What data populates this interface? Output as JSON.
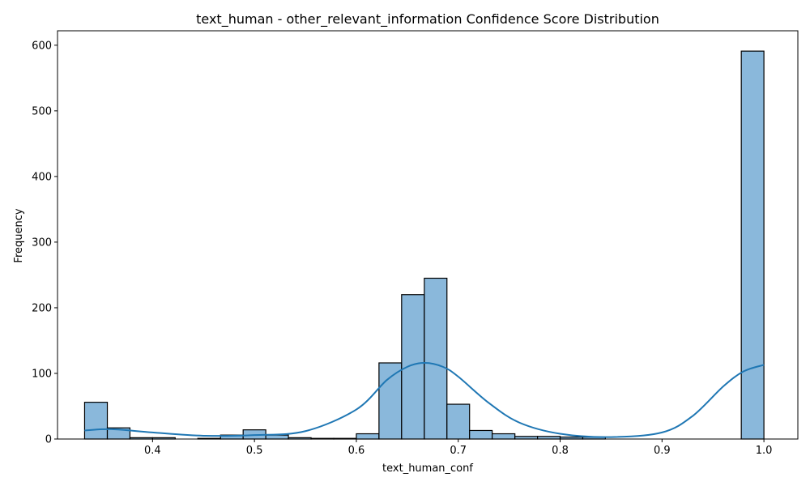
{
  "chart_data": {
    "type": "bar",
    "title": "text_human - other_relevant_information Confidence Score Distribution",
    "xlabel": "text_human_conf",
    "ylabel": "Frequency",
    "xlim": [
      0.3067,
      1.0333
    ],
    "ylim": [
      0,
      622
    ],
    "x_ticks": [
      "0.4",
      "0.5",
      "0.6",
      "0.7",
      "0.8",
      "0.9",
      "1.0"
    ],
    "x_tick_values": [
      0.4,
      0.5,
      0.6,
      0.7,
      0.8,
      0.9,
      1.0
    ],
    "y_ticks": [
      "0",
      "100",
      "200",
      "300",
      "400",
      "500",
      "600"
    ],
    "y_tick_values": [
      0,
      100,
      200,
      300,
      400,
      500,
      600
    ],
    "bin_edges": [
      0.3333,
      0.3556,
      0.3778,
      0.4,
      0.4222,
      0.4444,
      0.4667,
      0.4889,
      0.5111,
      0.5333,
      0.5556,
      0.5778,
      0.6,
      0.6222,
      0.6444,
      0.6667,
      0.6889,
      0.7111,
      0.7333,
      0.7556,
      0.7778,
      0.8,
      0.8222,
      0.8444,
      0.8667,
      0.8889,
      0.9111,
      0.9333,
      0.9556,
      0.9778,
      1.0
    ],
    "counts": [
      56,
      17,
      2,
      2,
      0,
      1,
      6,
      14,
      6,
      2,
      1,
      1,
      8,
      116,
      220,
      245,
      53,
      13,
      8,
      4,
      4,
      3,
      3,
      0,
      0,
      0,
      0,
      0,
      0,
      591
    ],
    "kde": {
      "x": [
        0.3333,
        0.36,
        0.4,
        0.45,
        0.5,
        0.55,
        0.6,
        0.63,
        0.65,
        0.667,
        0.685,
        0.7,
        0.73,
        0.76,
        0.8,
        0.85,
        0.9,
        0.93,
        0.96,
        0.98,
        1.0
      ],
      "y": [
        13,
        15,
        10,
        5,
        6,
        12,
        45,
        90,
        110,
        116,
        110,
        95,
        55,
        25,
        8,
        3,
        10,
        35,
        80,
        103,
        113
      ]
    },
    "grid": false,
    "colors": {
      "bar_fill": "#8ab8db",
      "bar_edge": "#000000",
      "kde_line": "#1f77b4"
    }
  }
}
